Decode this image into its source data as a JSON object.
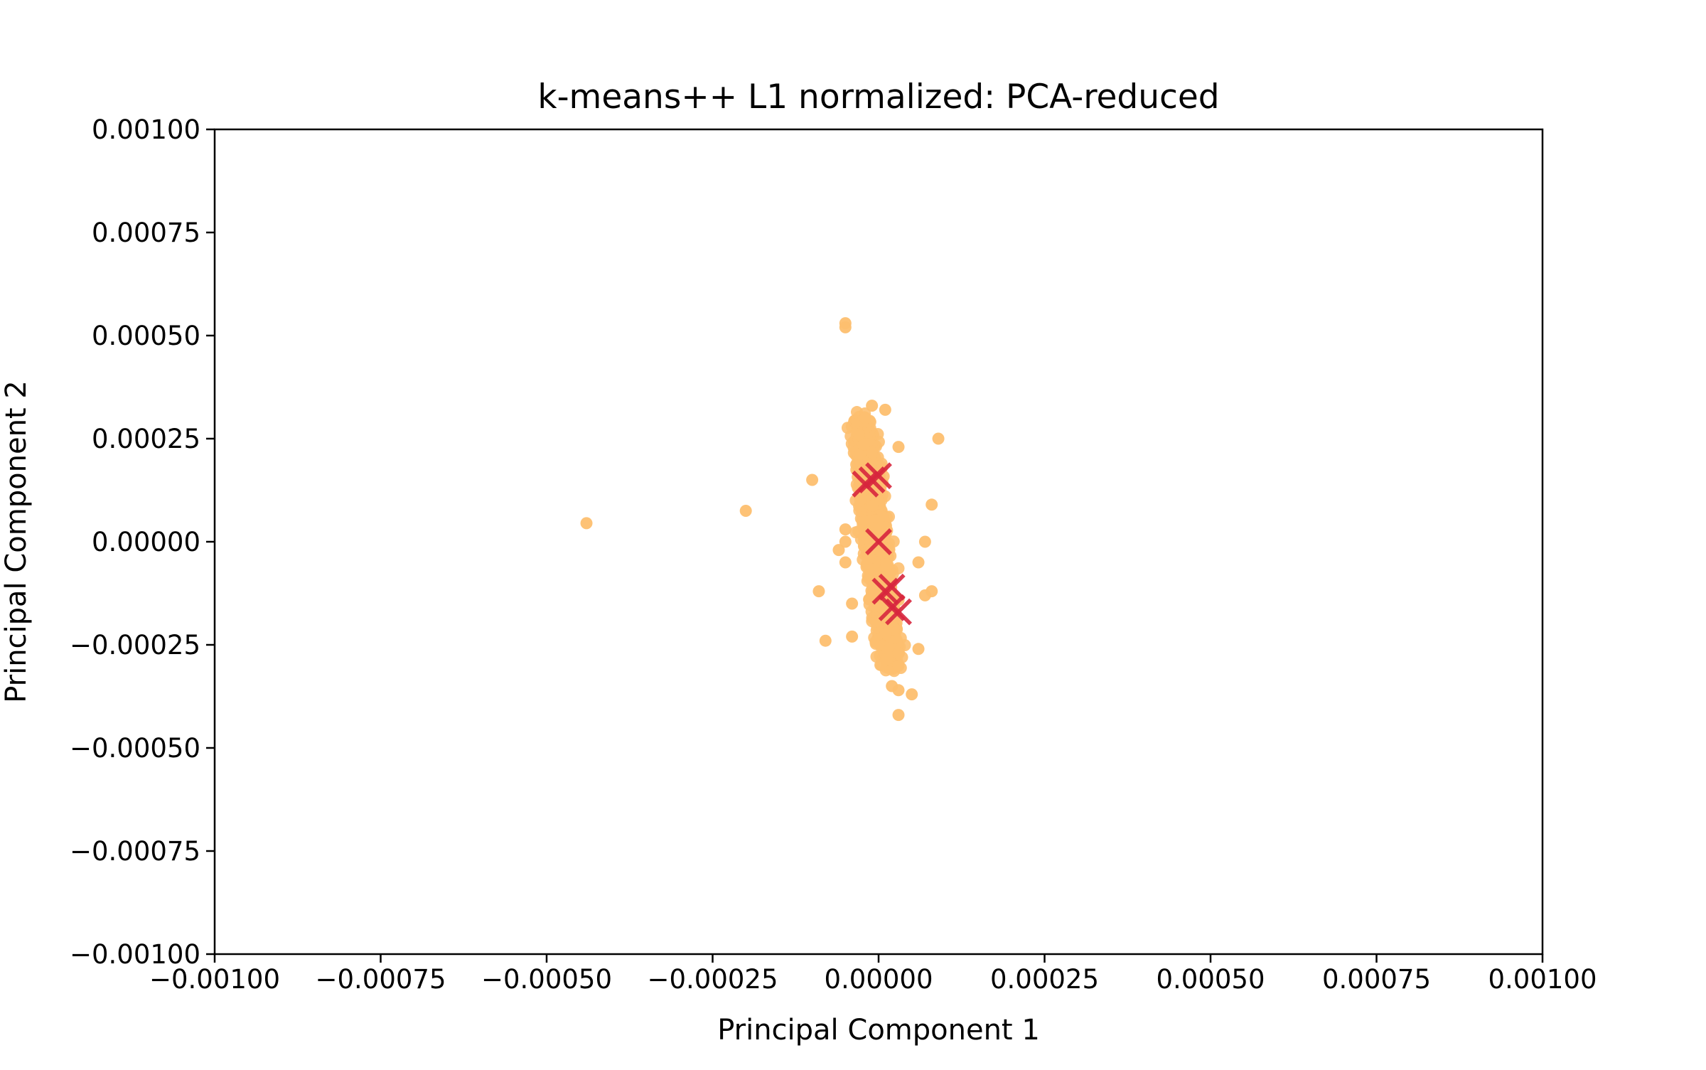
{
  "chart_data": {
    "type": "scatter",
    "title": "k-means++ L1 normalized: PCA-reduced",
    "xlabel": "Principal Component 1",
    "ylabel": "Principal Component 2",
    "xlim": [
      -0.001,
      0.001
    ],
    "ylim": [
      -0.001,
      0.001
    ],
    "x_ticks": [
      -0.001,
      -0.00075,
      -0.0005,
      -0.00025,
      0.0,
      0.00025,
      0.0005,
      0.00075,
      0.001
    ],
    "x_tick_labels": [
      "−0.00100",
      "−0.00075",
      "−0.00050",
      "−0.00025",
      "0.00000",
      "0.00025",
      "0.00050",
      "0.00075",
      "0.00100"
    ],
    "y_ticks": [
      -0.001,
      -0.00075,
      -0.0005,
      -0.00025,
      0.0,
      0.00025,
      0.0005,
      0.00075,
      0.001
    ],
    "y_tick_labels": [
      "−0.00100",
      "−0.00075",
      "−0.00050",
      "−0.00025",
      "0.00000",
      "0.00025",
      "0.00050",
      "0.00075",
      "0.00100"
    ],
    "grid": false,
    "colors": {
      "points": "#fdbf6f",
      "centroids": "#d7263d"
    },
    "series": [
      {
        "marker": "circle",
        "points": [
          [
            -0.00044,
            4.5e-05
          ],
          [
            -0.0002,
            7.5e-05
          ],
          [
            -0.0001,
            0.00015
          ],
          [
            -9e-05,
            -0.00012
          ],
          [
            -8e-05,
            -0.00024
          ],
          [
            -5e-05,
            0.00053
          ],
          [
            -5e-05,
            0.00052
          ],
          [
            -4e-05,
            -0.00015
          ],
          [
            -4e-05,
            -0.00023
          ],
          [
            9e-05,
            0.00025
          ],
          [
            8e-05,
            9e-05
          ],
          [
            -6e-05,
            -2e-05
          ],
          [
            -5e-05,
            -5e-05
          ],
          [
            -5e-05,
            0.0
          ],
          [
            -5e-05,
            3e-05
          ],
          [
            7e-05,
            -0.00013
          ],
          [
            8e-05,
            -0.00012
          ],
          [
            7e-05,
            0.0
          ],
          [
            6e-05,
            -5e-05
          ],
          [
            3e-05,
            -0.00042
          ],
          [
            6e-05,
            -0.00026
          ],
          [
            3e-05,
            -0.00036
          ],
          [
            5e-05,
            -0.00037
          ],
          [
            2e-05,
            -0.00035
          ],
          [
            1e-05,
            0.00032
          ],
          [
            -1e-05,
            0.00033
          ],
          [
            -2e-05,
            0.0003
          ],
          [
            3e-05,
            0.00023
          ],
          [
            -3e-05,
            0.00026
          ]
        ]
      },
      {
        "marker": "x",
        "points": [
          [
            -1e-05,
            0.00015
          ],
          [
            0.0,
            0.00016
          ],
          [
            -2e-05,
            0.00014
          ],
          [
            0.0,
            0.0
          ],
          [
            1e-05,
            -0.00012
          ],
          [
            2e-05,
            -0.00011
          ],
          [
            2e-05,
            -0.00016
          ],
          [
            3e-05,
            -0.00017
          ]
        ]
      }
    ]
  }
}
